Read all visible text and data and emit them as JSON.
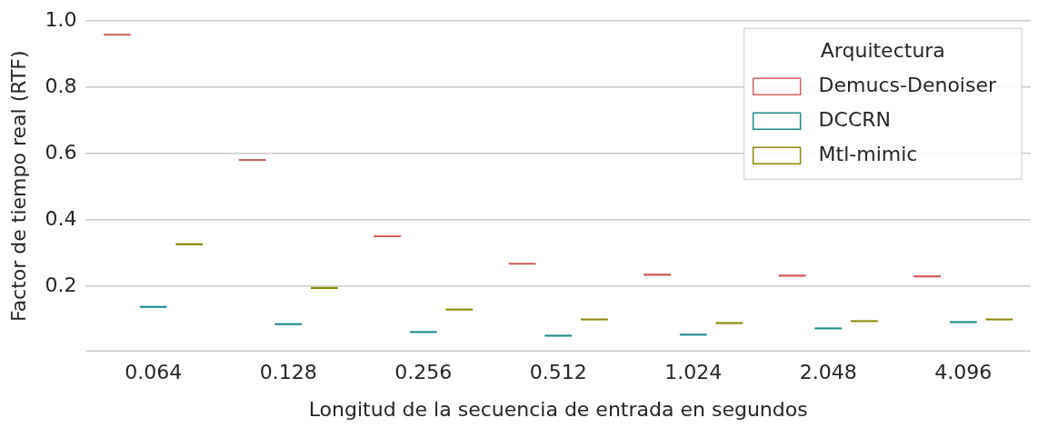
{
  "chart_data": {
    "type": "box",
    "xlabel": "Longitud de la secuencia de entrada en segundos",
    "ylabel": "Factor de tiempo real (RTF)",
    "legend_title": "Arquitectura",
    "legend": "top right",
    "grid": "y",
    "categories": [
      "0.064",
      "0.128",
      "0.256",
      "0.512",
      "1.024",
      "2.048",
      "4.096"
    ],
    "ylim": [
      0.005,
      1.0
    ],
    "yticks": [
      {
        "value": 0.2,
        "label": "0.2"
      },
      {
        "value": 0.4,
        "label": "0.4"
      },
      {
        "value": 0.6,
        "label": "0.6"
      },
      {
        "value": 0.8,
        "label": "0.8"
      },
      {
        "value": 1.0,
        "label": "1.0"
      }
    ],
    "series": [
      {
        "name": "Demucs-Denoiser",
        "color": "#d65f5f",
        "boxes": [
          {
            "low": 0.957,
            "q1": 0.957,
            "median": 0.959,
            "q3": 0.961,
            "high": 0.961
          },
          {
            "low": 0.579,
            "q1": 0.579,
            "median": 0.581,
            "q3": 0.583,
            "high": 0.583
          },
          {
            "low": 0.349,
            "q1": 0.349,
            "median": 0.351,
            "q3": 0.353,
            "high": 0.353
          },
          {
            "low": 0.266,
            "q1": 0.266,
            "median": 0.268,
            "q3": 0.27,
            "high": 0.27
          },
          {
            "low": 0.232,
            "q1": 0.232,
            "median": 0.235,
            "q3": 0.238,
            "high": 0.238
          },
          {
            "low": 0.229,
            "q1": 0.229,
            "median": 0.232,
            "q3": 0.235,
            "high": 0.235
          },
          {
            "low": 0.226,
            "q1": 0.226,
            "median": 0.23,
            "q3": 0.234,
            "high": 0.234
          }
        ]
      },
      {
        "name": "DCCRN",
        "color": "#1a8a8a",
        "boxes": [
          {
            "low": 0.136,
            "q1": 0.136,
            "median": 0.138,
            "q3": 0.14,
            "high": 0.14
          },
          {
            "low": 0.084,
            "q1": 0.084,
            "median": 0.086,
            "q3": 0.088,
            "high": 0.088
          },
          {
            "low": 0.06,
            "q1": 0.06,
            "median": 0.062,
            "q3": 0.064,
            "high": 0.064
          },
          {
            "low": 0.049,
            "q1": 0.049,
            "median": 0.051,
            "q3": 0.053,
            "high": 0.053
          },
          {
            "low": 0.052,
            "q1": 0.052,
            "median": 0.054,
            "q3": 0.056,
            "high": 0.056
          },
          {
            "low": 0.071,
            "q1": 0.071,
            "median": 0.073,
            "q3": 0.075,
            "high": 0.075
          },
          {
            "low": 0.09,
            "q1": 0.09,
            "median": 0.092,
            "q3": 0.094,
            "high": 0.094
          }
        ]
      },
      {
        "name": "Mtl-mimic",
        "color": "#8a8a0a",
        "boxes": [
          {
            "low": 0.324,
            "q1": 0.324,
            "median": 0.327,
            "q3": 0.33,
            "high": 0.33
          },
          {
            "low": 0.192,
            "q1": 0.192,
            "median": 0.195,
            "q3": 0.198,
            "high": 0.198
          },
          {
            "low": 0.128,
            "q1": 0.128,
            "median": 0.13,
            "q3": 0.132,
            "high": 0.132
          },
          {
            "low": 0.098,
            "q1": 0.098,
            "median": 0.1,
            "q3": 0.102,
            "high": 0.102
          },
          {
            "low": 0.087,
            "q1": 0.087,
            "median": 0.089,
            "q3": 0.092,
            "high": 0.092
          },
          {
            "low": 0.093,
            "q1": 0.093,
            "median": 0.095,
            "q3": 0.097,
            "high": 0.097
          },
          {
            "low": 0.098,
            "q1": 0.098,
            "median": 0.1,
            "q3": 0.102,
            "high": 0.102
          }
        ]
      }
    ]
  }
}
